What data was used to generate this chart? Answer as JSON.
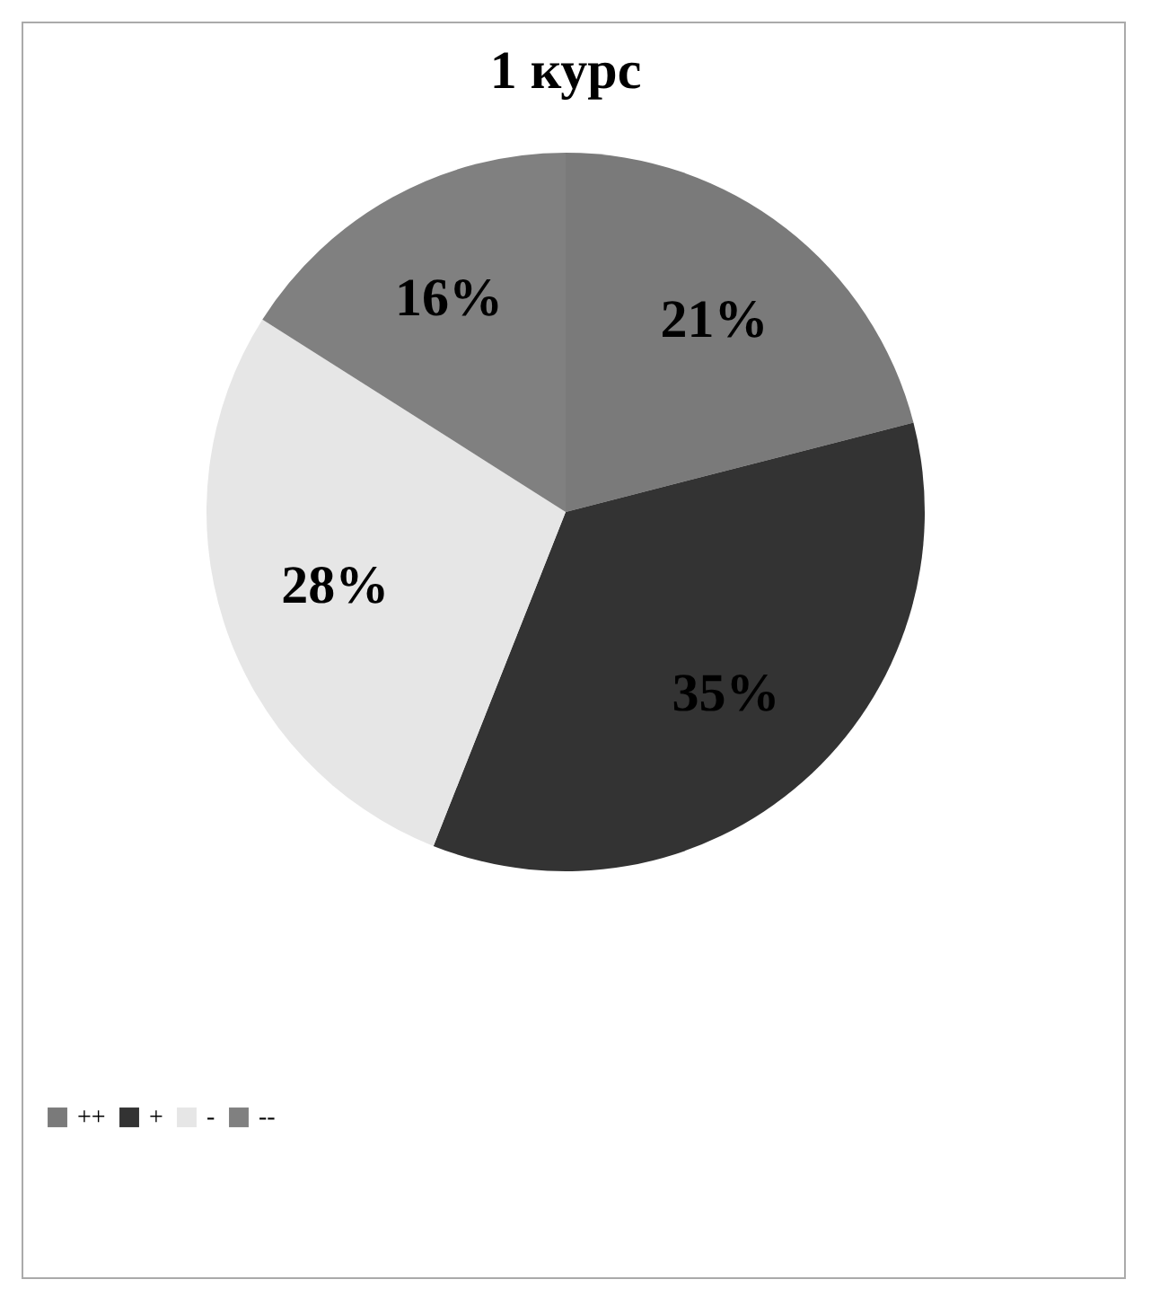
{
  "chart_data": {
    "type": "pie",
    "title": "1 курс",
    "categories": [
      "++",
      "+",
      "-",
      "--"
    ],
    "values": [
      21,
      35,
      28,
      16
    ],
    "colors": [
      "#7a7a7a",
      "#333333",
      "#e6e6e6",
      "#808080"
    ],
    "value_labels": [
      "21%",
      "35%",
      "28%",
      "16%"
    ],
    "legend": "bottom"
  }
}
